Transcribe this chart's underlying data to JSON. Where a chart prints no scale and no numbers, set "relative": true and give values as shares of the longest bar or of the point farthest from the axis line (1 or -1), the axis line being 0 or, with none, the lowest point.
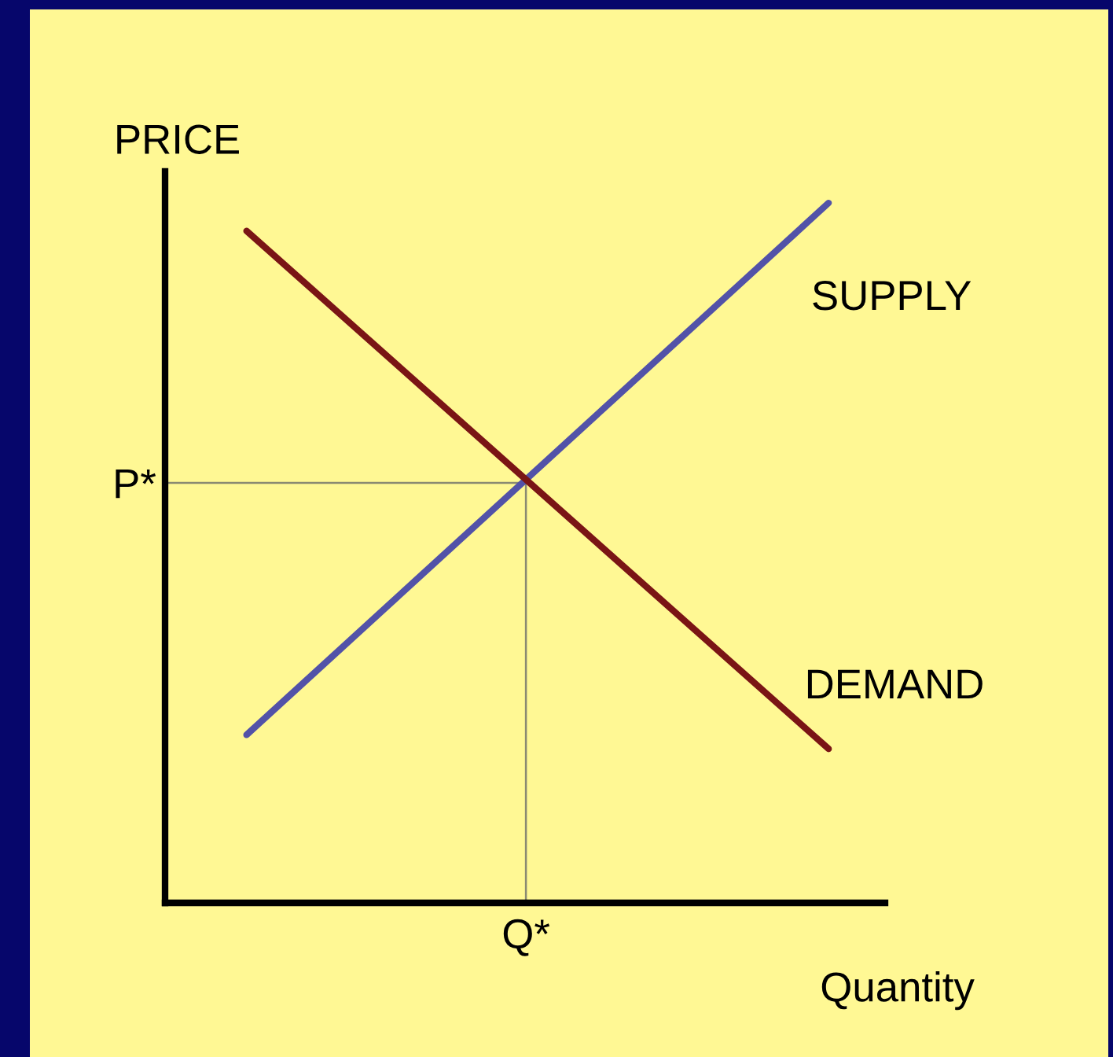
{
  "chart_data": {
    "type": "line",
    "relative": true,
    "xlabel": "Quantity",
    "ylabel": "PRICE",
    "categories": [
      null,
      null
    ],
    "series": [
      {
        "name": "SUPPLY",
        "color": "#5252a8",
        "values": [
          0.24,
          1.0
        ]
      },
      {
        "name": "DEMAND",
        "color": "#7a1515",
        "values": [
          0.96,
          0.22
        ]
      }
    ],
    "ref_lines": [
      {
        "axis": "y",
        "value": 0.6,
        "label": "P*",
        "color": "#8a8a72"
      }
    ],
    "annotations": [
      "Q*"
    ]
  }
}
